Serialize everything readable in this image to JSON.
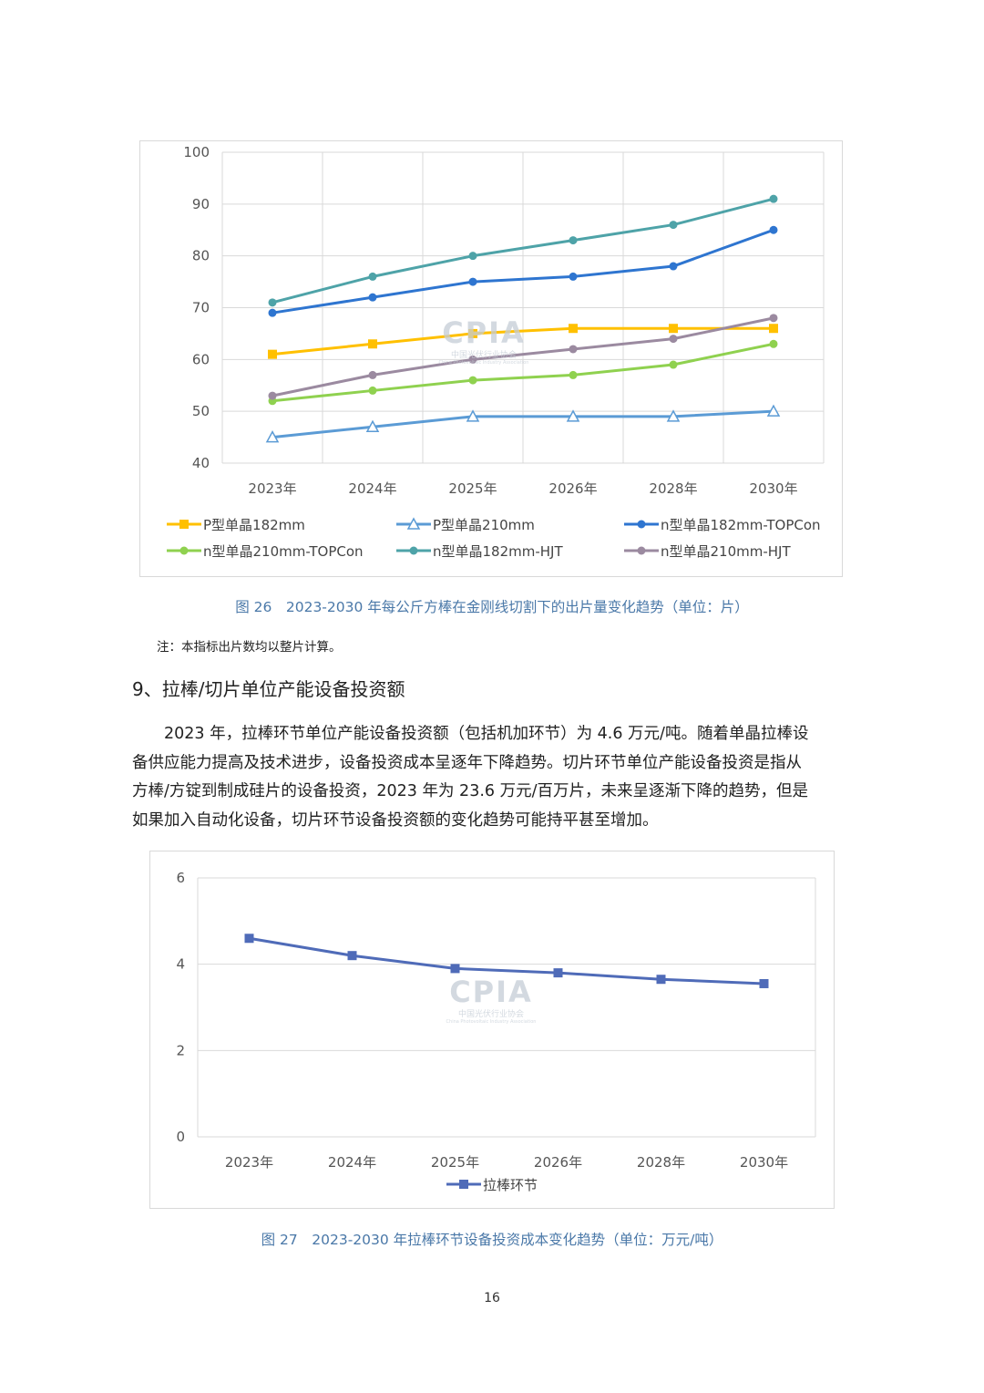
{
  "chart_data": [
    {
      "type": "line",
      "categories": [
        "2023年",
        "2024年",
        "2025年",
        "2026年",
        "2028年",
        "2030年"
      ],
      "ylim": [
        40,
        100
      ],
      "yticks": [
        40,
        50,
        60,
        70,
        80,
        90,
        100
      ],
      "grid": true,
      "legend": "bottom",
      "series": [
        {
          "name": "P型单晶182mm",
          "values": [
            61,
            63,
            65,
            66,
            66,
            66
          ],
          "color": "#ffc000",
          "marker": "square"
        },
        {
          "name": "P型单晶210mm",
          "values": [
            45,
            47,
            49,
            49,
            49,
            50
          ],
          "color": "#5b9bd5",
          "marker": "triangle-open"
        },
        {
          "name": "n型单晶182mm-TOPCon",
          "values": [
            69,
            72,
            75,
            76,
            78,
            85
          ],
          "color": "#2e75d0",
          "marker": "circle"
        },
        {
          "name": "n型单晶210mm-TOPCon",
          "values": [
            52,
            54,
            56,
            57,
            59,
            63
          ],
          "color": "#8fd14f",
          "marker": "circle"
        },
        {
          "name": "n型单晶182mm-HJT",
          "values": [
            71,
            76,
            80,
            83,
            86,
            91
          ],
          "color": "#4ea3a8",
          "marker": "circle"
        },
        {
          "name": "n型单晶210mm-HJT",
          "values": [
            53,
            57,
            60,
            62,
            64,
            68
          ],
          "color": "#9b8aa0",
          "marker": "circle"
        }
      ]
    },
    {
      "type": "line",
      "categories": [
        "2023年",
        "2024年",
        "2025年",
        "2026年",
        "2028年",
        "2030年"
      ],
      "ylim": [
        0,
        6
      ],
      "yticks": [
        0,
        2,
        4,
        6
      ],
      "grid": true,
      "legend": "bottom",
      "series": [
        {
          "name": "拉棒环节",
          "values": [
            4.6,
            4.2,
            3.9,
            3.8,
            3.65,
            3.55
          ],
          "color": "#4f6bb8",
          "marker": "square"
        }
      ]
    }
  ],
  "watermark": {
    "logo": "CPIA",
    "cn": "中国光伏行业协会",
    "en": "China Photovoltaic Industry Association"
  },
  "caption1": "图 26　2023-2030 年每公斤方棒在金刚线切割下的出片量变化趋势（单位：片）",
  "note": "注：本指标出片数均以整片计算。",
  "heading": "9、拉棒/切片单位产能设备投资额",
  "paragraph": [
    "　　2023 年，拉棒环节单位产能设备投资额（包括机加环节）为 4.6 万元/吨。随着单晶拉棒设",
    "备供应能力提高及技术进步，设备投资成本呈逐年下降趋势。切片环节单位产能设备投资是指从",
    "方棒/方锭到制成硅片的设备投资，2023 年为 23.6 万元/百万片，未来呈逐渐下降的趋势，但是",
    "如果加入自动化设备，切片环节设备投资额的变化趋势可能持平甚至增加。"
  ],
  "caption2": "图 27　2023-2030 年拉棒环节设备投资成本变化趋势（单位：万元/吨）",
  "page_number": "16"
}
